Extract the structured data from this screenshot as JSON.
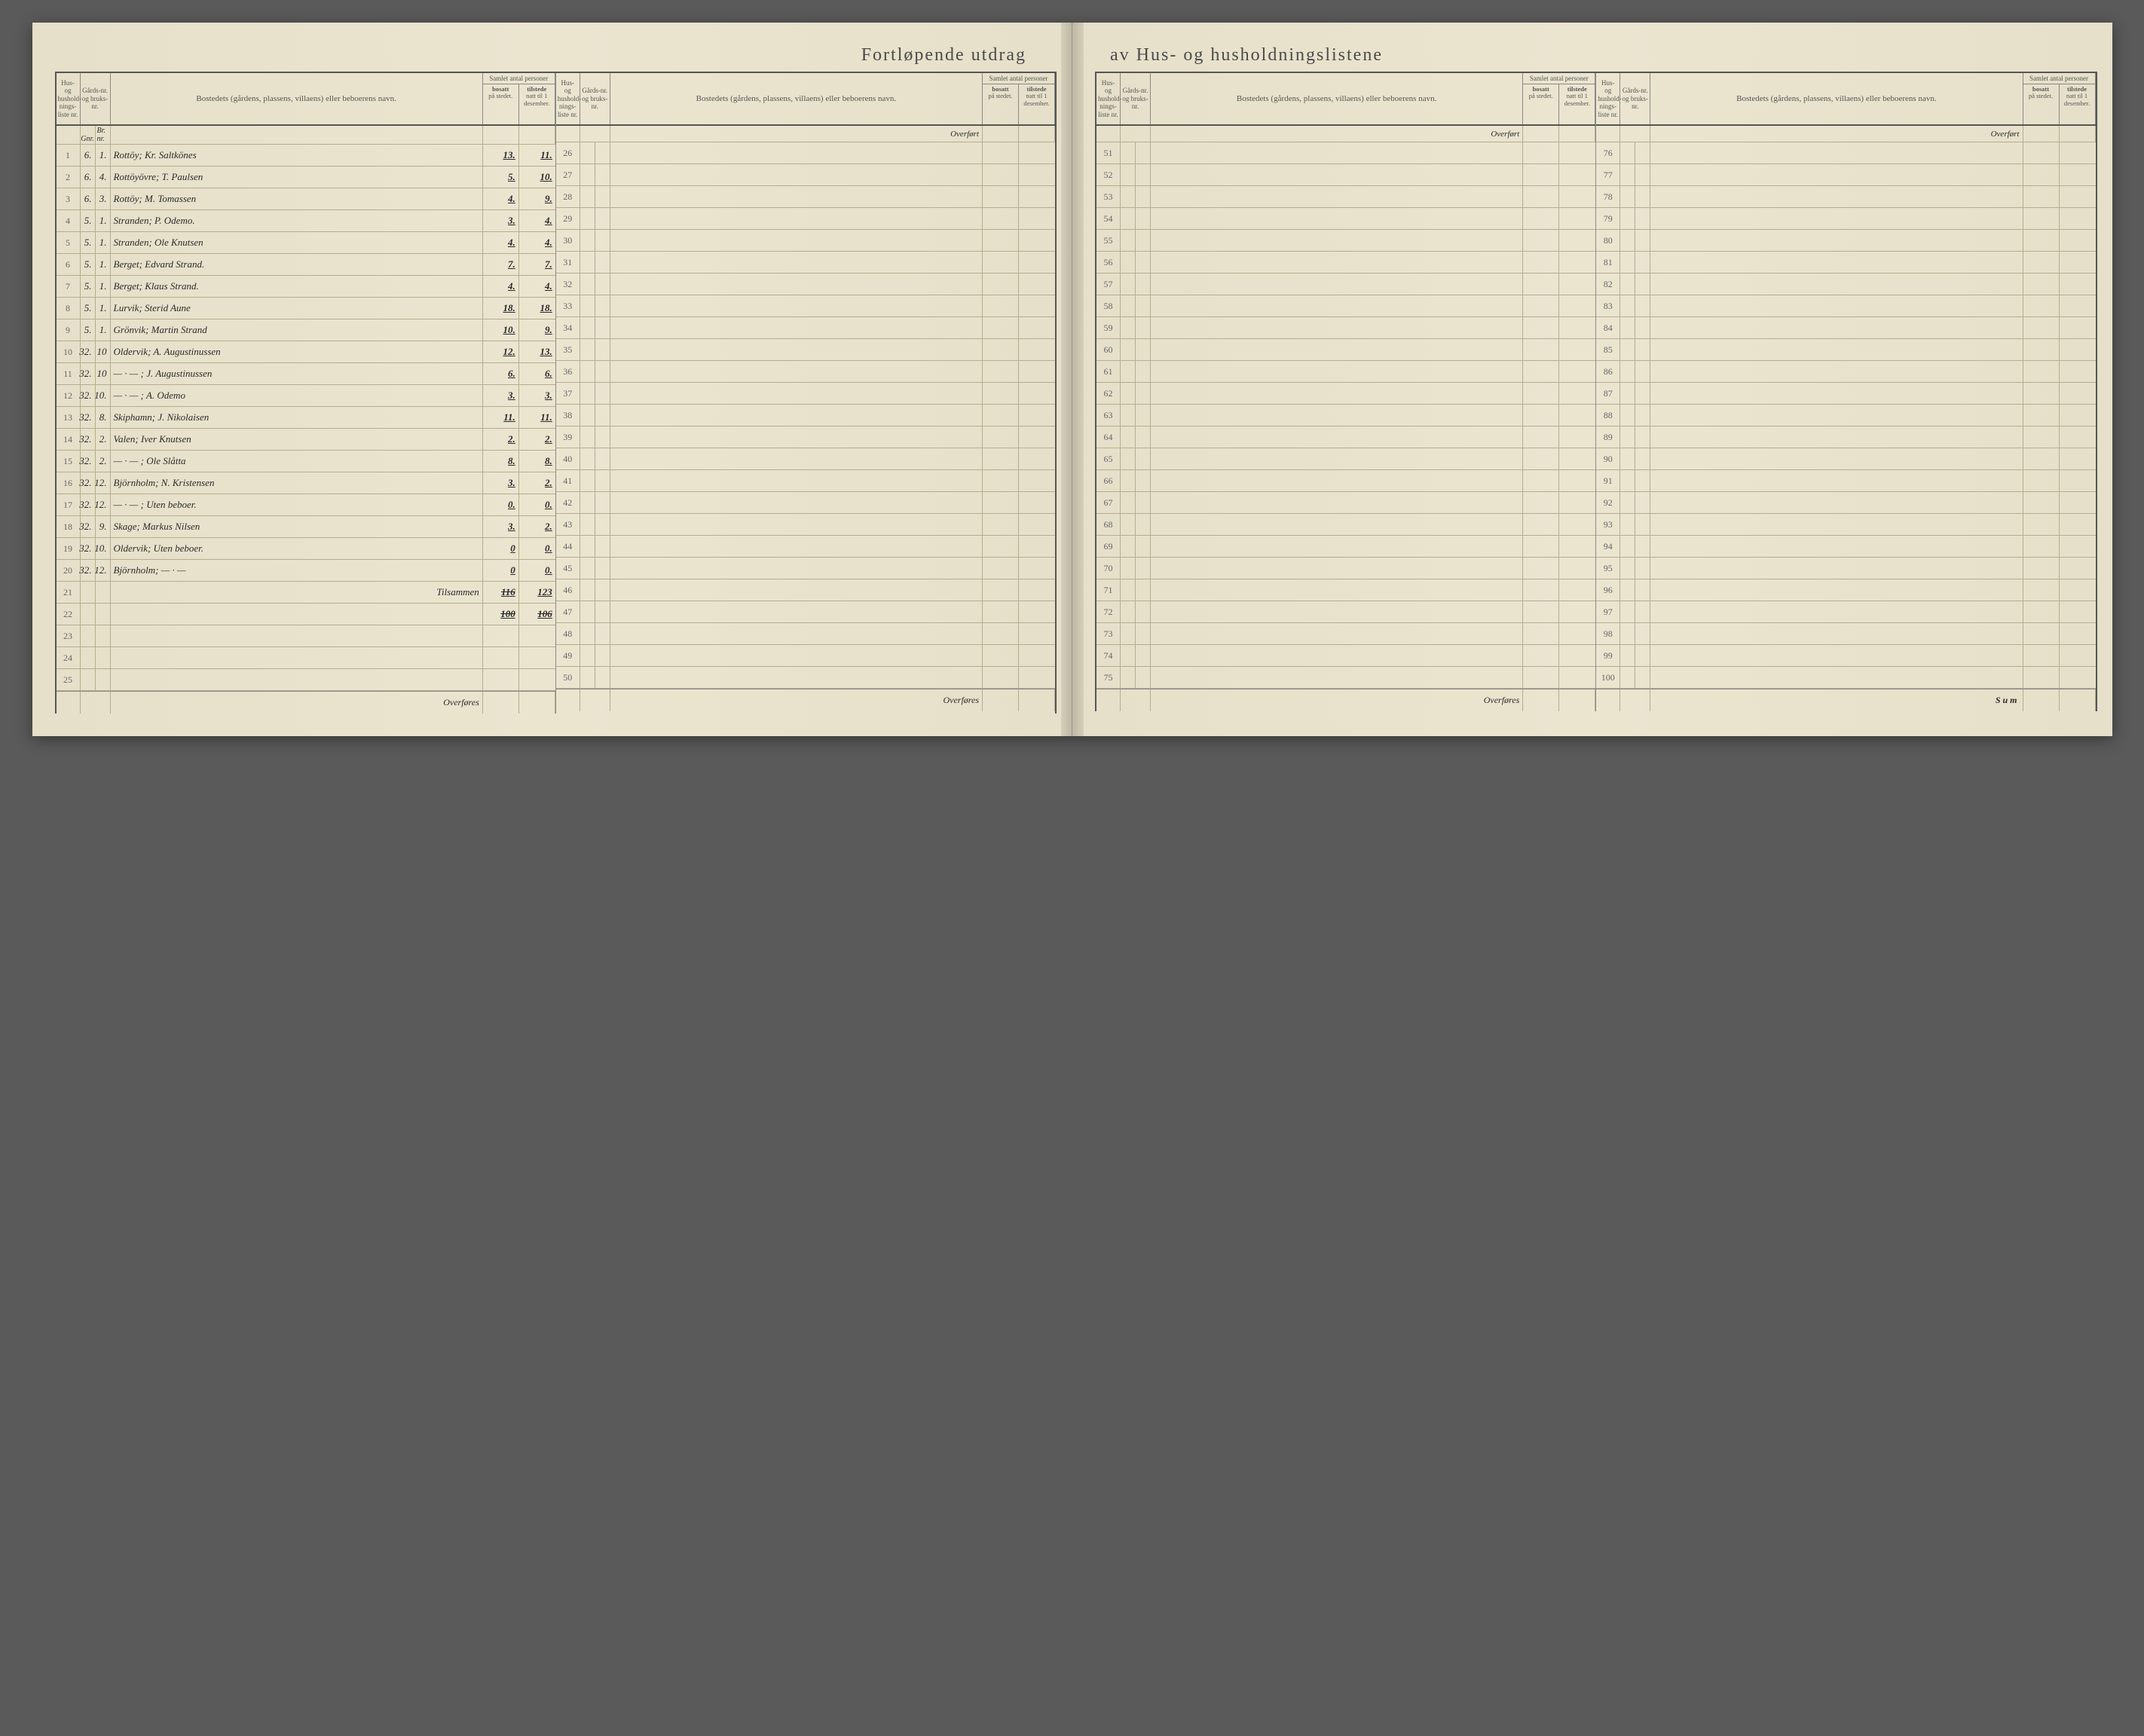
{
  "title_left": "Fortløpende utdrag",
  "title_right": "av Hus- og husholdningslistene",
  "headers": {
    "liste": "Hus- og hushold-nings-liste nr.",
    "gnr": "Gårds-nr. og bruks-nr.",
    "bostedet": "Bostedets (gårdens, plassens, villaens) eller beboerens navn.",
    "samlet": "Samlet antal personer",
    "bosatt": "bosatt på stedet.",
    "tilstede": "tilstede natt til 1 desember."
  },
  "subheader": {
    "gnr": "Gnr.",
    "bnr": "Br. nr."
  },
  "overfort_label": "Overført",
  "overfores_label": "Overføres",
  "sum_label": "Sum",
  "tilsammen_label": "Tilsammen",
  "panels": [
    {
      "start": 1,
      "end": 25,
      "footer": "overfores",
      "rows": [
        {
          "n": 1,
          "g": "6.",
          "b": "1.",
          "name": "Rottöy; Kr. Saltkönes",
          "bo": "13.",
          "ti": "11."
        },
        {
          "n": 2,
          "g": "6.",
          "b": "4.",
          "name": "Rottöyövre; T. Paulsen",
          "bo": "5.",
          "ti": "10."
        },
        {
          "n": 3,
          "g": "6.",
          "b": "3.",
          "name": "Rottöy; M. Tomassen",
          "bo": "4.",
          "ti": "9."
        },
        {
          "n": 4,
          "g": "5.",
          "b": "1.",
          "name": "Stranden; P. Odemo.",
          "bo": "3.",
          "ti": "4."
        },
        {
          "n": 5,
          "g": "5.",
          "b": "1.",
          "name": "Stranden; Ole Knutsen",
          "bo": "4.",
          "ti": "4."
        },
        {
          "n": 6,
          "g": "5.",
          "b": "1.",
          "name": "Berget; Edvard Strand.",
          "bo": "7.",
          "ti": "7."
        },
        {
          "n": 7,
          "g": "5.",
          "b": "1.",
          "name": "Berget; Klaus Strand.",
          "bo": "4.",
          "ti": "4."
        },
        {
          "n": 8,
          "g": "5.",
          "b": "1.",
          "name": "Lurvik; Sterid Aune",
          "bo": "18.",
          "ti": "18."
        },
        {
          "n": 9,
          "g": "5.",
          "b": "1.",
          "name": "Grönvik; Martin Strand",
          "bo": "10.",
          "ti": "9."
        },
        {
          "n": 10,
          "g": "32.",
          "b": "10",
          "name": "Oldervik; A. Augustinussen",
          "bo": "12.",
          "ti": "13."
        },
        {
          "n": 11,
          "g": "32.",
          "b": "10",
          "name": "— · — ; J. Augustinussen",
          "bo": "6.",
          "ti": "6."
        },
        {
          "n": 12,
          "g": "32.",
          "b": "10.",
          "name": "— · — ; A. Odemo",
          "bo": "3.",
          "ti": "3."
        },
        {
          "n": 13,
          "g": "32.",
          "b": "8.",
          "name": "Skiphamn; J. Nikolaisen",
          "bo": "11.",
          "ti": "11."
        },
        {
          "n": 14,
          "g": "32.",
          "b": "2.",
          "name": "Valen; Iver Knutsen",
          "bo": "2.",
          "ti": "2."
        },
        {
          "n": 15,
          "g": "32.",
          "b": "2.",
          "name": "— · — ; Ole Slåtta",
          "bo": "8.",
          "ti": "8."
        },
        {
          "n": 16,
          "g": "32.",
          "b": "12.",
          "name": "Björnholm; N. Kristensen",
          "bo": "3.",
          "ti": "2."
        },
        {
          "n": 17,
          "g": "32.",
          "b": "12.",
          "name": "— · — ; Uten beboer.",
          "bo": "0.",
          "ti": "0."
        },
        {
          "n": 18,
          "g": "32.",
          "b": "9.",
          "name": "Skage; Markus Nilsen",
          "bo": "3.",
          "ti": "2."
        },
        {
          "n": 19,
          "g": "32.",
          "b": "10.",
          "name": "Oldervik; Uten beboer.",
          "bo": "0",
          "ti": "0."
        },
        {
          "n": 20,
          "g": "32.",
          "b": "12.",
          "name": "Björnholm; — · —",
          "bo": "0",
          "ti": "0."
        },
        {
          "n": 21,
          "g": "",
          "b": "",
          "name": "",
          "bo": "",
          "ti": "",
          "tilsammen": true,
          "sum_bo": "116",
          "sum_ti": "123"
        },
        {
          "n": 22,
          "g": "",
          "b": "",
          "name": "",
          "bo": "",
          "ti": "",
          "struck_bo": "100",
          "struck_ti": "106"
        },
        {
          "n": 23
        },
        {
          "n": 24
        },
        {
          "n": 25
        }
      ]
    },
    {
      "start": 26,
      "end": 50,
      "footer": "overfores",
      "rows": []
    },
    {
      "start": 51,
      "end": 75,
      "footer": "overfores",
      "rows": []
    },
    {
      "start": 76,
      "end": 100,
      "footer": "sum",
      "rows": []
    }
  ]
}
